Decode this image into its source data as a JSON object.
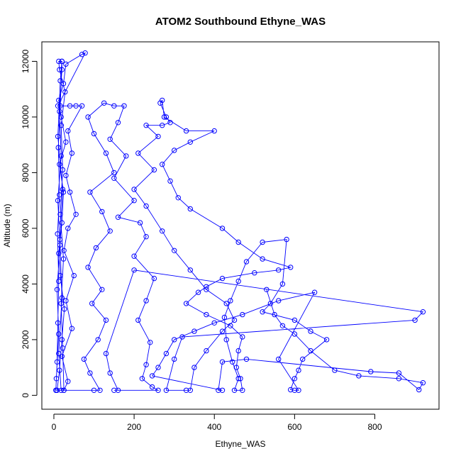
{
  "chart_data": {
    "type": "scatter",
    "title": "ATOM2 Southbound Ethyne_WAS",
    "xlabel": "Ethyne_WAS",
    "ylabel": "Altitude (m)",
    "xlim": [
      -30,
      960
    ],
    "ylim": [
      -500,
      12700
    ],
    "x_ticks": [
      0,
      200,
      400,
      600,
      800
    ],
    "y_ticks": [
      0,
      2000,
      4000,
      6000,
      8000,
      10000,
      12000
    ],
    "grid": false,
    "legend": "none",
    "marker": "open-circle",
    "connected": true,
    "series": [
      {
        "color": "#0000ff",
        "points": [
          [
            5,
            180
          ],
          [
            8,
            1200
          ],
          [
            10,
            2600
          ],
          [
            12,
            4100
          ],
          [
            9,
            5800
          ],
          [
            14,
            7200
          ],
          [
            11,
            8900
          ],
          [
            16,
            10400
          ],
          [
            20,
            12000
          ],
          [
            20,
            11700
          ],
          [
            14,
            10200
          ],
          [
            18,
            8600
          ],
          [
            10,
            7000
          ],
          [
            15,
            5400
          ],
          [
            8,
            3800
          ],
          [
            12,
            2200
          ],
          [
            6,
            600
          ],
          [
            5,
            180
          ],
          [
            25,
            180
          ],
          [
            22,
            1700
          ],
          [
            18,
            3300
          ],
          [
            24,
            4900
          ],
          [
            16,
            6500
          ],
          [
            22,
            8100
          ],
          [
            18,
            9700
          ],
          [
            28,
            10900
          ],
          [
            14,
            11700
          ],
          [
            12,
            12000
          ],
          [
            20,
            12000
          ],
          [
            16,
            11300
          ],
          [
            10,
            9300
          ],
          [
            22,
            7400
          ],
          [
            15,
            5600
          ],
          [
            20,
            3500
          ],
          [
            12,
            1500
          ],
          [
            18,
            180
          ],
          [
            8,
            180
          ],
          [
            14,
            900
          ],
          [
            20,
            2000
          ],
          [
            26,
            3100
          ],
          [
            16,
            4300
          ],
          [
            12,
            5100
          ],
          [
            20,
            6200
          ],
          [
            24,
            7300
          ],
          [
            14,
            8300
          ],
          [
            30,
            9100
          ],
          [
            18,
            10000
          ],
          [
            12,
            10600
          ],
          [
            24,
            11200
          ],
          [
            30,
            11900
          ],
          [
            70,
            12250
          ],
          [
            78,
            12300
          ],
          [
            10,
            10400
          ],
          [
            40,
            10400
          ],
          [
            55,
            10400
          ],
          [
            70,
            10400
          ],
          [
            35,
            9500
          ],
          [
            45,
            8700
          ],
          [
            30,
            7900
          ],
          [
            40,
            7300
          ],
          [
            55,
            6500
          ],
          [
            35,
            6000
          ],
          [
            25,
            5200
          ],
          [
            50,
            4300
          ],
          [
            30,
            3400
          ],
          [
            45,
            2400
          ],
          [
            20,
            1400
          ],
          [
            35,
            500
          ],
          [
            25,
            180
          ],
          [
            100,
            180
          ],
          [
            115,
            180
          ],
          [
            90,
            800
          ],
          [
            75,
            1300
          ],
          [
            110,
            2000
          ],
          [
            130,
            2700
          ],
          [
            95,
            3300
          ],
          [
            120,
            3800
          ],
          [
            85,
            4600
          ],
          [
            105,
            5300
          ],
          [
            140,
            5900
          ],
          [
            120,
            6600
          ],
          [
            90,
            7300
          ],
          [
            150,
            8000
          ],
          [
            130,
            8700
          ],
          [
            100,
            9400
          ],
          [
            85,
            10000
          ],
          [
            125,
            10500
          ],
          [
            150,
            10400
          ],
          [
            175,
            10400
          ],
          [
            160,
            9800
          ],
          [
            140,
            9200
          ],
          [
            180,
            8600
          ],
          [
            150,
            7800
          ],
          [
            200,
            7000
          ],
          [
            160,
            6400
          ],
          [
            215,
            6200
          ],
          [
            230,
            5700
          ],
          [
            200,
            5000
          ],
          [
            250,
            4200
          ],
          [
            230,
            3400
          ],
          [
            210,
            2700
          ],
          [
            240,
            1900
          ],
          [
            230,
            1100
          ],
          [
            220,
            600
          ],
          [
            245,
            300
          ],
          [
            260,
            180
          ],
          [
            150,
            180
          ],
          [
            160,
            180
          ],
          [
            140,
            800
          ],
          [
            130,
            1500
          ],
          [
            200,
            4500
          ],
          [
            920,
            3000
          ],
          [
            900,
            2700
          ],
          [
            320,
            2100
          ],
          [
            300,
            1300
          ],
          [
            280,
            180
          ],
          [
            330,
            180
          ],
          [
            340,
            180
          ],
          [
            350,
            1000
          ],
          [
            380,
            1600
          ],
          [
            420,
            2300
          ],
          [
            450,
            2700
          ],
          [
            430,
            3300
          ],
          [
            380,
            3800
          ],
          [
            340,
            4500
          ],
          [
            300,
            5200
          ],
          [
            270,
            5900
          ],
          [
            230,
            6800
          ],
          [
            200,
            7400
          ],
          [
            250,
            8100
          ],
          [
            210,
            8700
          ],
          [
            260,
            9300
          ],
          [
            230,
            9700
          ],
          [
            270,
            9700
          ],
          [
            290,
            9800
          ],
          [
            280,
            10000
          ],
          [
            265,
            10500
          ],
          [
            270,
            10600
          ],
          [
            275,
            10000
          ],
          [
            330,
            9500
          ],
          [
            400,
            9500
          ],
          [
            340,
            9100
          ],
          [
            300,
            8800
          ],
          [
            270,
            8300
          ],
          [
            290,
            7700
          ],
          [
            310,
            7100
          ],
          [
            340,
            6700
          ],
          [
            420,
            6000
          ],
          [
            460,
            5500
          ],
          [
            520,
            4900
          ],
          [
            590,
            4600
          ],
          [
            560,
            4500
          ],
          [
            500,
            4400
          ],
          [
            420,
            4200
          ],
          [
            380,
            3900
          ],
          [
            360,
            3700
          ],
          [
            330,
            3300
          ],
          [
            380,
            2900
          ],
          [
            440,
            2500
          ],
          [
            470,
            2100
          ],
          [
            460,
            1600
          ],
          [
            455,
            1000
          ],
          [
            465,
            600
          ],
          [
            470,
            180
          ],
          [
            450,
            180
          ],
          [
            460,
            600
          ],
          [
            445,
            1200
          ],
          [
            430,
            2000
          ],
          [
            425,
            2800
          ],
          [
            440,
            3400
          ],
          [
            460,
            4100
          ],
          [
            480,
            4800
          ],
          [
            520,
            5500
          ],
          [
            580,
            5600
          ],
          [
            570,
            4000
          ],
          [
            540,
            3300
          ],
          [
            520,
            3000
          ],
          [
            600,
            2700
          ],
          [
            640,
            2300
          ],
          [
            680,
            2000
          ],
          [
            620,
            1300
          ],
          [
            610,
            900
          ],
          [
            600,
            600
          ],
          [
            590,
            200
          ],
          [
            600,
            180
          ],
          [
            610,
            180
          ],
          [
            560,
            1300
          ],
          [
            650,
            3700
          ],
          [
            560,
            3400
          ],
          [
            470,
            2900
          ],
          [
            400,
            2600
          ],
          [
            350,
            2300
          ],
          [
            300,
            2000
          ],
          [
            280,
            1500
          ],
          [
            260,
            1000
          ],
          [
            245,
            700
          ],
          [
            420,
            180
          ],
          [
            410,
            180
          ],
          [
            420,
            1200
          ],
          [
            480,
            1300
          ],
          [
            790,
            850
          ],
          [
            860,
            800
          ],
          [
            910,
            200
          ],
          [
            920,
            450
          ],
          [
            860,
            600
          ],
          [
            760,
            700
          ],
          [
            700,
            900
          ],
          [
            640,
            1600
          ],
          [
            600,
            2200
          ],
          [
            570,
            2500
          ],
          [
            550,
            2900
          ],
          [
            530,
            3800
          ]
        ]
      }
    ]
  }
}
